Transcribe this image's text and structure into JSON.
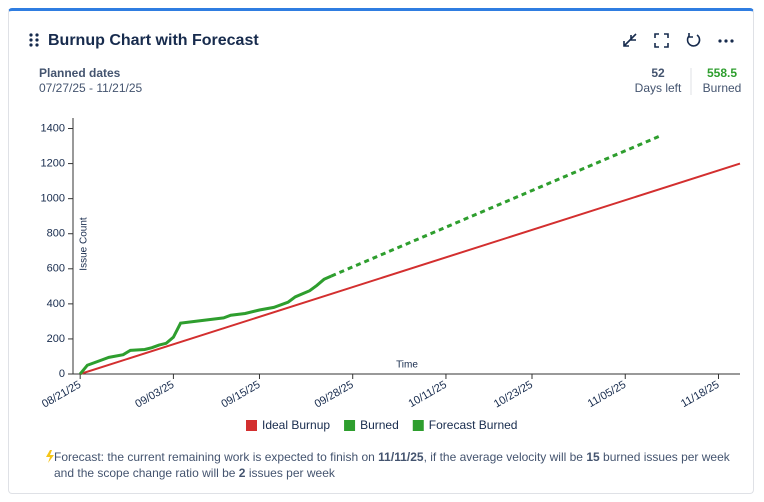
{
  "header": {
    "title": "Burnup Chart with Forecast"
  },
  "summary": {
    "planned_label": "Planned dates",
    "planned_range": "07/27/25 - 11/21/25",
    "days_left": "52",
    "days_left_label": "Days left",
    "burned": "558.5",
    "burned_label": "Burned"
  },
  "chart_data": {
    "type": "line",
    "ylabel": "Issue Count",
    "xlabel": "Time",
    "xlim": [
      "08/20/25",
      "11/21/25"
    ],
    "xticks": [
      "08/21/25",
      "09/03/25",
      "09/15/25",
      "09/28/25",
      "10/11/25",
      "10/23/25",
      "11/05/25",
      "11/18/25"
    ],
    "ylim": [
      0,
      1460
    ],
    "yticks": [
      0,
      200,
      400,
      600,
      800,
      1000,
      1200,
      1400
    ],
    "series": [
      {
        "name": "Ideal Burnup",
        "color": "#d32f2f",
        "dashed": false,
        "x": [
          "08/21/25",
          "11/21/25"
        ],
        "values": [
          0,
          1200
        ]
      },
      {
        "name": "Burned",
        "color": "#2e9e2e",
        "dashed": false,
        "x": [
          "08/21/25",
          "08/22/25",
          "08/24/25",
          "08/25/25",
          "08/27/25",
          "08/28/25",
          "08/30/25",
          "08/31/25",
          "09/01/25",
          "09/02/25",
          "09/03/25",
          "09/04/25",
          "09/06/25",
          "09/08/25",
          "09/10/25",
          "09/11/25",
          "09/13/25",
          "09/15/25",
          "09/17/25",
          "09/19/25",
          "09/20/25",
          "09/22/25",
          "09/23/25",
          "09/24/25",
          "09/25/25"
        ],
        "values": [
          0,
          50,
          80,
          95,
          110,
          135,
          140,
          150,
          165,
          175,
          210,
          290,
          300,
          310,
          320,
          335,
          345,
          365,
          380,
          410,
          440,
          475,
          505,
          540,
          558.5
        ]
      },
      {
        "name": "Forecast Burned",
        "color": "#2e9e2e",
        "dashed": true,
        "x": [
          "09/25/25",
          "11/10/25"
        ],
        "values": [
          558.5,
          1360
        ]
      }
    ]
  },
  "forecast": {
    "t1": "Forecast: the current remaining work is expected to finish on",
    "date": "11/11/25",
    "t2": ", if the average velocity will be",
    "velocity": "15",
    "t3": "burned issues per week and the scope change ratio will be",
    "scope": "2",
    "t4": "issues per week"
  }
}
